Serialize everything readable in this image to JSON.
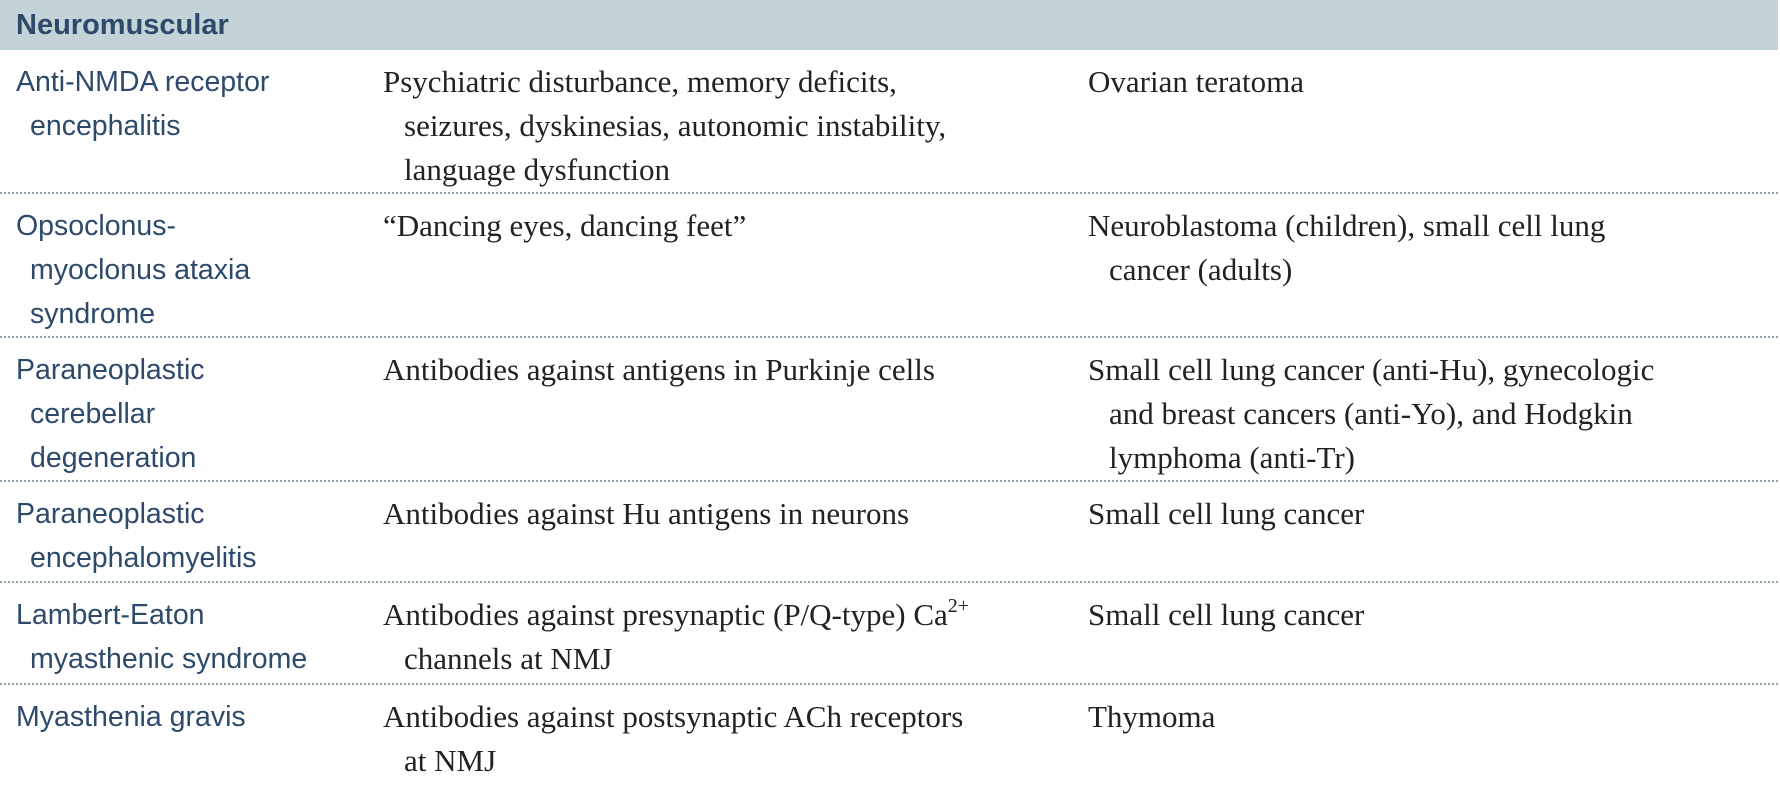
{
  "section_title": "Neuromuscular",
  "rows": [
    {
      "name": [
        "Anti-NMDA receptor",
        "encephalitis"
      ],
      "description": [
        "Psychiatric disturbance, memory deficits,",
        "seizures, dyskinesias, autonomic instability,",
        "language dysfunction"
      ],
      "tumor": [
        "Ovarian teratoma"
      ]
    },
    {
      "name": [
        "Opsoclonus-",
        "myoclonus ataxia",
        "syndrome"
      ],
      "description": [
        "“Dancing eyes, dancing feet”"
      ],
      "tumor": [
        "Neuroblastoma (children), small cell lung",
        "cancer (adults)"
      ]
    },
    {
      "name": [
        "Paraneoplastic",
        "cerebellar",
        "degeneration"
      ],
      "description": [
        "Antibodies against antigens in Purkinje cells"
      ],
      "tumor": [
        "Small cell lung cancer (anti-Hu), gynecologic",
        "and breast cancers (anti-Yo), and Hodgkin",
        "lymphoma (anti-Tr)"
      ]
    },
    {
      "name": [
        "Paraneoplastic",
        "encephalomyelitis"
      ],
      "description": [
        "Antibodies against Hu antigens in neurons"
      ],
      "tumor": [
        "Small cell lung cancer"
      ]
    },
    {
      "name": [
        "Lambert-Eaton",
        "myasthenic syndrome"
      ],
      "description": [
        "Antibodies against presynaptic (P/Q-type) Ca",
        "channels at NMJ"
      ],
      "description_sup": "2+",
      "tumor": [
        "Small cell lung cancer"
      ]
    },
    {
      "name": [
        "Myasthenia gravis"
      ],
      "description": [
        "Antibodies against postsynaptic ACh receptors",
        "at NMJ"
      ],
      "tumor": [
        "Thymoma"
      ]
    }
  ]
}
